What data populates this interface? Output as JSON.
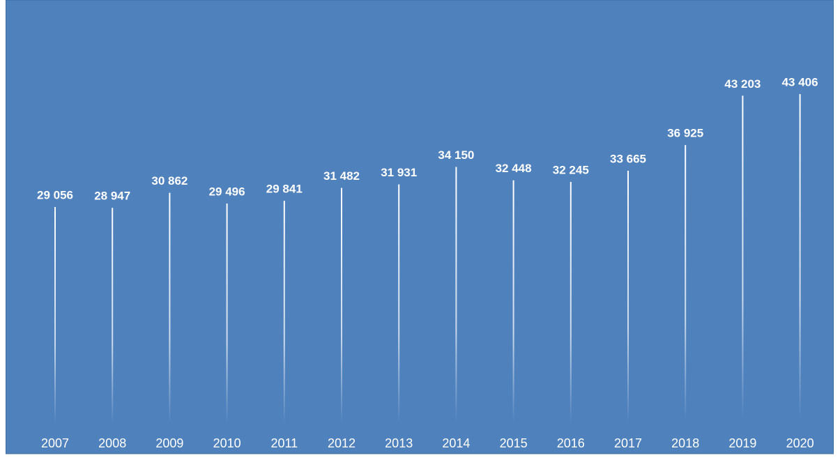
{
  "chart_data": {
    "type": "bar",
    "categories": [
      "2007",
      "2008",
      "2009",
      "2010",
      "2011",
      "2012",
      "2013",
      "2014",
      "2015",
      "2016",
      "2017",
      "2018",
      "2019",
      "2020"
    ],
    "values": [
      29056,
      28947,
      30862,
      29496,
      29841,
      31482,
      31931,
      34150,
      32448,
      32245,
      33665,
      36925,
      43203,
      43406
    ],
    "value_labels": [
      "29 056",
      "28 947",
      "30 862",
      "29 496",
      "29 841",
      "31 482",
      "31 931",
      "34 150",
      "32 448",
      "32 245",
      "33 665",
      "36 925",
      "43 203",
      "43 406"
    ],
    "color": "#ffffff",
    "background": "#4f81bd"
  }
}
